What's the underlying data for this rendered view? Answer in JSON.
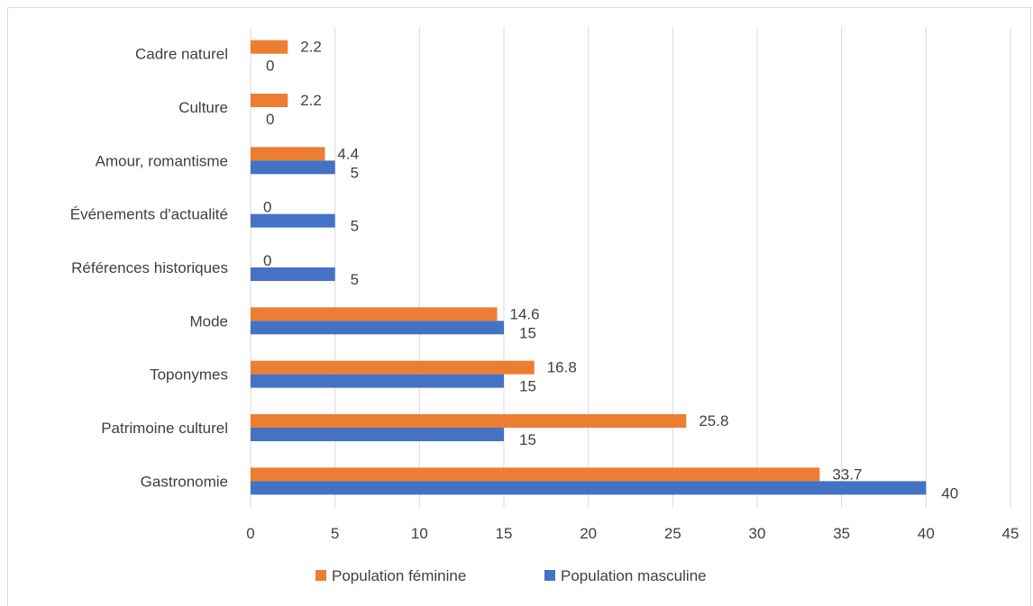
{
  "chart_data": {
    "type": "bar",
    "orientation": "horizontal",
    "categories": [
      "Gastronomie",
      "Patrimoine culturel",
      "Toponymes",
      "Mode",
      "Références historiques",
      "Événements d'actualité",
      "Amour, romantisme",
      "Culture",
      "Cadre naturel"
    ],
    "series": [
      {
        "name": "Population féminine",
        "color": "#ed7d31",
        "values": [
          33.7,
          25.8,
          16.8,
          14.6,
          0,
          0,
          4.4,
          2.2,
          2.2
        ],
        "labels": [
          "33.7",
          "25.8",
          "16.8",
          "14.6",
          "0",
          "0",
          "4.4",
          "2.2",
          "2.2"
        ]
      },
      {
        "name": "Population masculine",
        "color": "#4472c4",
        "values": [
          40,
          15,
          15,
          15,
          5,
          5,
          5,
          0,
          0
        ],
        "labels": [
          "40",
          "15",
          "15",
          "15",
          "5",
          "5",
          "5",
          "0",
          "0"
        ]
      }
    ],
    "xlim": [
      0,
      45
    ],
    "x_ticks": [
      "0",
      "5",
      "10",
      "15",
      "20",
      "25",
      "30",
      "35",
      "40",
      "45"
    ],
    "grid": true,
    "legend_position": "bottom"
  }
}
